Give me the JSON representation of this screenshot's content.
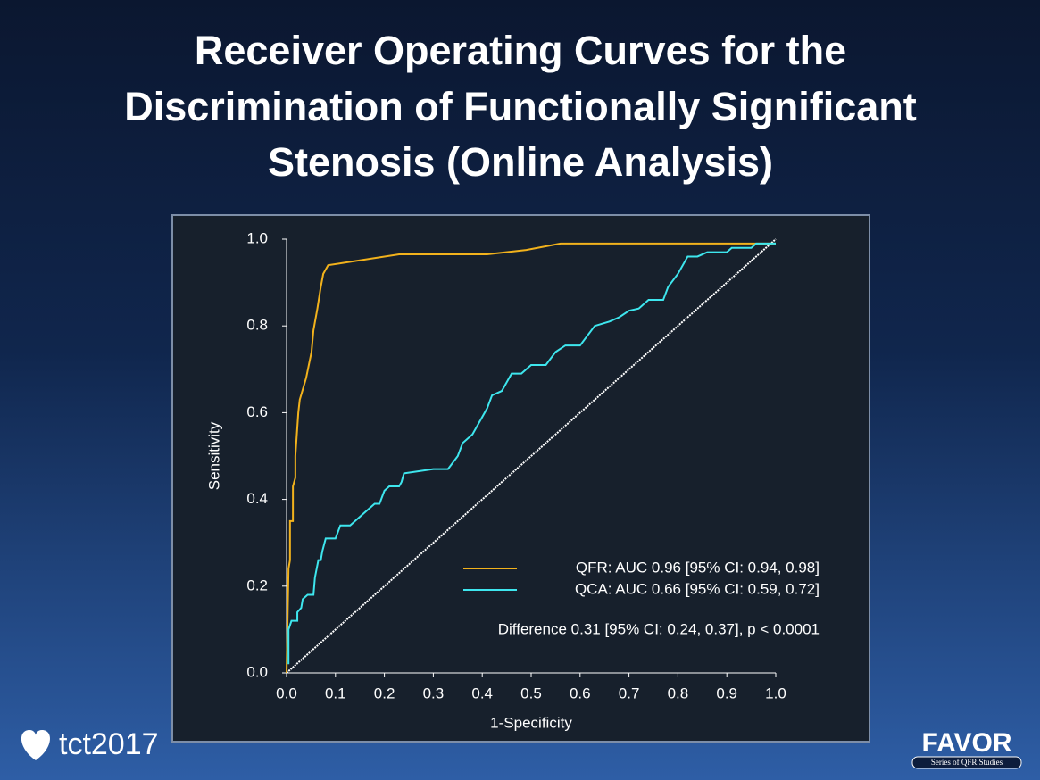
{
  "slide": {
    "title_lines": [
      "Receiver Operating Curves for the",
      "Discrimination of Functionally Significant",
      "Stenosis (Online Analysis)"
    ]
  },
  "branding": {
    "left": "tct2017",
    "right": "FAVOR",
    "right_sub": "Series of QFR Studies"
  },
  "chart_data": {
    "type": "line",
    "x_label": "1-Specificity",
    "y_label": "Sensitivity",
    "xlim": [
      0,
      1
    ],
    "ylim": [
      0,
      1
    ],
    "xticks": [
      {
        "value": 0,
        "label": "0.0"
      },
      0.1,
      0.2,
      0.3,
      0.4,
      0.5,
      0.6,
      0.7,
      0.8,
      0.9,
      {
        "value": 1,
        "label": "1.0"
      }
    ],
    "yticks": [
      {
        "value": 0,
        "label": "0.0"
      },
      0.2,
      0.4,
      0.6,
      0.8,
      {
        "value": 1,
        "label": "1.0"
      }
    ],
    "diagonal": true,
    "diagonal_color": "#ffffff",
    "legend": "bottom-right",
    "annotation": "Difference 0.31 [95% CI: 0.24, 0.37], p < 0.0001",
    "series": [
      {
        "name": "QFR: AUC 0.96 [95% CI: 0.94, 0.98]",
        "color": "#f2b21c",
        "x": [
          0,
          0.004,
          0.007,
          0.007,
          0.013,
          0.013,
          0.018,
          0.018,
          0.024,
          0.027,
          0.04,
          0.051,
          0.055,
          0.063,
          0.07,
          0.075,
          0.085,
          0.23,
          0.41,
          0.49,
          0.56,
          1
        ],
        "values": [
          0,
          0.24,
          0.26,
          0.35,
          0.35,
          0.43,
          0.45,
          0.5,
          0.6,
          0.63,
          0.68,
          0.74,
          0.79,
          0.84,
          0.89,
          0.92,
          0.94,
          0.965,
          0.965,
          0.975,
          0.99,
          0.99
        ]
      },
      {
        "name": "QCA: AUC 0.66 [95% CI: 0.59, 0.72]",
        "color": "#3ee6ee",
        "x": [
          0.004,
          0.004,
          0.007,
          0.01,
          0.022,
          0.022,
          0.03,
          0.033,
          0.043,
          0.055,
          0.058,
          0.065,
          0.07,
          0.073,
          0.08,
          0.1,
          0.11,
          0.13,
          0.15,
          0.16,
          0.18,
          0.19,
          0.2,
          0.21,
          0.23,
          0.235,
          0.24,
          0.3,
          0.33,
          0.35,
          0.36,
          0.38,
          0.39,
          0.41,
          0.42,
          0.44,
          0.45,
          0.46,
          0.48,
          0.5,
          0.53,
          0.55,
          0.57,
          0.6,
          0.63,
          0.66,
          0.68,
          0.7,
          0.72,
          0.74,
          0.77,
          0.78,
          0.8,
          0.82,
          0.84,
          0.86,
          0.9,
          0.91,
          0.95,
          0.96,
          1
        ],
        "values": [
          0.02,
          0.1,
          0.11,
          0.12,
          0.12,
          0.14,
          0.15,
          0.17,
          0.18,
          0.18,
          0.22,
          0.26,
          0.26,
          0.28,
          0.31,
          0.31,
          0.34,
          0.34,
          0.36,
          0.37,
          0.39,
          0.39,
          0.42,
          0.43,
          0.43,
          0.44,
          0.46,
          0.47,
          0.47,
          0.5,
          0.53,
          0.55,
          0.57,
          0.61,
          0.64,
          0.65,
          0.67,
          0.69,
          0.69,
          0.71,
          0.71,
          0.74,
          0.755,
          0.755,
          0.8,
          0.81,
          0.82,
          0.835,
          0.84,
          0.86,
          0.86,
          0.89,
          0.92,
          0.96,
          0.96,
          0.97,
          0.97,
          0.98,
          0.98,
          0.99,
          0.99
        ]
      }
    ]
  }
}
